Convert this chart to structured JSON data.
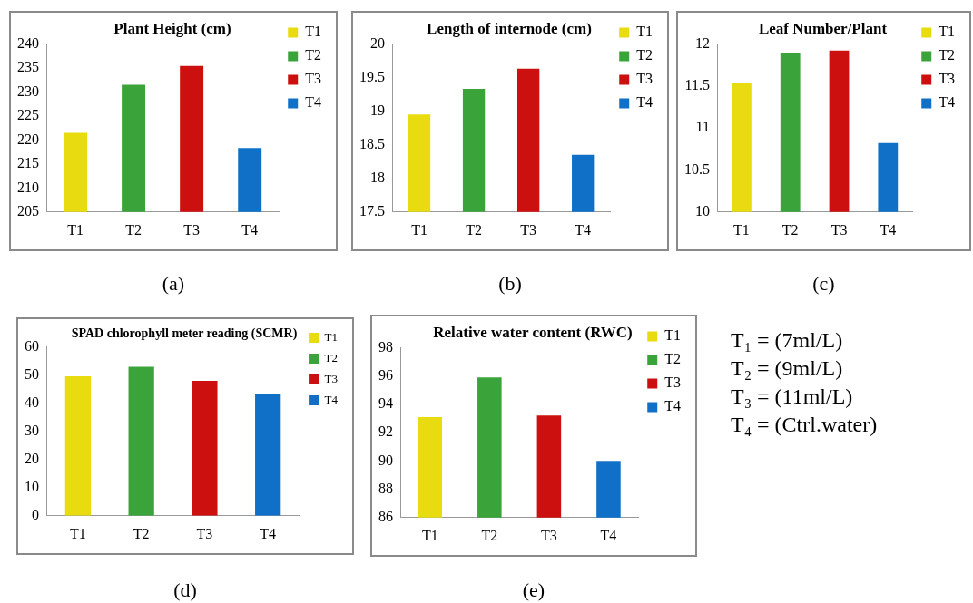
{
  "chart_data": [
    {
      "type": "bar",
      "title": "Plant Height (cm)",
      "categories": [
        "T1",
        "T2",
        "T3",
        "T4"
      ],
      "series": [
        {
          "name": "T1",
          "color": "#e8dc10",
          "values": [
            221.5,
            null,
            null,
            null
          ]
        },
        {
          "name": "T2",
          "color": "#3aa43a",
          "values": [
            null,
            231.5,
            null,
            null
          ]
        },
        {
          "name": "T3",
          "color": "#cc1010",
          "values": [
            null,
            null,
            235.4,
            null
          ]
        },
        {
          "name": "T4",
          "color": "#1070c8",
          "values": [
            null,
            null,
            null,
            218.3
          ]
        }
      ],
      "ylim": [
        205,
        240
      ],
      "yticks": [
        205,
        210,
        215,
        220,
        225,
        230,
        235,
        240
      ],
      "legend": "right",
      "annotations": [
        "(a)"
      ]
    },
    {
      "type": "bar",
      "title": "Length of internode (cm)",
      "categories": [
        "T1",
        "T2",
        "T3",
        "T4"
      ],
      "series": [
        {
          "name": "T1",
          "color": "#e8dc10",
          "values": [
            18.95,
            null,
            null,
            null
          ]
        },
        {
          "name": "T2",
          "color": "#3aa43a",
          "values": [
            null,
            19.33,
            null,
            null
          ]
        },
        {
          "name": "T3",
          "color": "#cc1010",
          "values": [
            null,
            null,
            19.63,
            null
          ]
        },
        {
          "name": "T4",
          "color": "#1070c8",
          "values": [
            null,
            null,
            null,
            18.35
          ]
        }
      ],
      "ylim": [
        17.5,
        20
      ],
      "yticks": [
        17.5,
        18,
        18.5,
        19,
        19.5,
        20
      ],
      "legend": "right",
      "annotations": [
        "(b)"
      ]
    },
    {
      "type": "bar",
      "title": "Leaf Number/Plant",
      "categories": [
        "T1",
        "T2",
        "T3",
        "T4"
      ],
      "series": [
        {
          "name": "T1",
          "color": "#e8dc10",
          "values": [
            11.53,
            null,
            null,
            null
          ]
        },
        {
          "name": "T2",
          "color": "#3aa43a",
          "values": [
            null,
            11.89,
            null,
            null
          ]
        },
        {
          "name": "T3",
          "color": "#cc1010",
          "values": [
            null,
            null,
            11.92,
            null
          ]
        },
        {
          "name": "T4",
          "color": "#1070c8",
          "values": [
            null,
            null,
            null,
            10.82
          ]
        }
      ],
      "ylim": [
        10,
        12
      ],
      "yticks": [
        10,
        10.5,
        11,
        11.5,
        12
      ],
      "legend": "right",
      "annotations": [
        "(c)"
      ]
    },
    {
      "type": "bar",
      "title": "SPAD chlorophyll meter reading (SCMR)",
      "categories": [
        "T1",
        "T2",
        "T3",
        "T4"
      ],
      "series": [
        {
          "name": "T1",
          "color": "#e8dc10",
          "values": [
            49.6,
            null,
            null,
            null
          ]
        },
        {
          "name": "T2",
          "color": "#3aa43a",
          "values": [
            null,
            53,
            null,
            null
          ]
        },
        {
          "name": "T3",
          "color": "#cc1010",
          "values": [
            null,
            null,
            48,
            null
          ]
        },
        {
          "name": "T4",
          "color": "#1070c8",
          "values": [
            null,
            null,
            null,
            43.5
          ]
        }
      ],
      "ylim": [
        0,
        60
      ],
      "yticks": [
        0,
        10,
        20,
        30,
        40,
        50,
        60
      ],
      "legend": "right",
      "annotations": [
        "(d)"
      ]
    },
    {
      "type": "bar",
      "title": "Relative water content (RWC)",
      "categories": [
        "T1",
        "T2",
        "T3",
        "T4"
      ],
      "series": [
        {
          "name": "T1",
          "color": "#e8dc10",
          "values": [
            93.1,
            null,
            null,
            null
          ]
        },
        {
          "name": "T2",
          "color": "#3aa43a",
          "values": [
            null,
            95.9,
            null,
            null
          ]
        },
        {
          "name": "T3",
          "color": "#cc1010",
          "values": [
            null,
            null,
            93.2,
            null
          ]
        },
        {
          "name": "T4",
          "color": "#1070c8",
          "values": [
            null,
            null,
            null,
            90
          ]
        }
      ],
      "ylim": [
        86,
        98
      ],
      "yticks": [
        86,
        88,
        90,
        92,
        94,
        96,
        98
      ],
      "legend": "right",
      "annotations": [
        "(e)"
      ]
    },
    {
      "type": "other",
      "annotations": [
        "T₁ = (7ml/L)",
        "T₂ = (9ml/L)",
        "T₃ = (11ml/L)",
        "T₄ = (Ctrl.water)"
      ]
    }
  ]
}
